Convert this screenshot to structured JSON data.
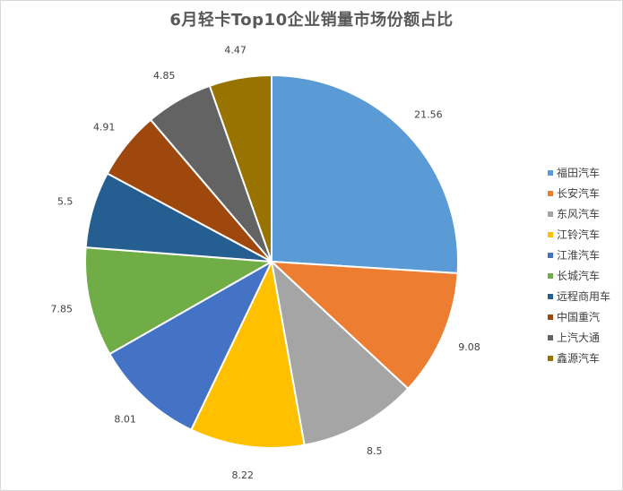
{
  "title": "6月轻卡Top10企业销量市场份额占比",
  "chart_data": {
    "type": "pie",
    "title": "6月轻卡Top10企业销量市场份额占比",
    "categories": [
      "福田汽车",
      "长安汽车",
      "东风汽车",
      "江铃汽车",
      "江淮汽车",
      "长城汽车",
      "远程商用车",
      "中国重汽",
      "上汽大通",
      "鑫源汽车"
    ],
    "values": [
      21.56,
      9.08,
      8.5,
      8.22,
      8.01,
      7.85,
      5.5,
      4.91,
      4.85,
      4.47
    ],
    "value_labels": [
      "21.56",
      "9.08",
      "8.5",
      "8.22",
      "8.01",
      "7.85",
      "5.5",
      "4.91",
      "4.85",
      "4.47"
    ],
    "colors": [
      "#5b9bd5",
      "#ed7d31",
      "#a5a5a5",
      "#ffc000",
      "#4472c4",
      "#70ad47",
      "#255e91",
      "#9e480e",
      "#636363",
      "#997300"
    ],
    "legend_position": "right",
    "start_angle": "12 o'clock",
    "direction": "clockwise"
  }
}
